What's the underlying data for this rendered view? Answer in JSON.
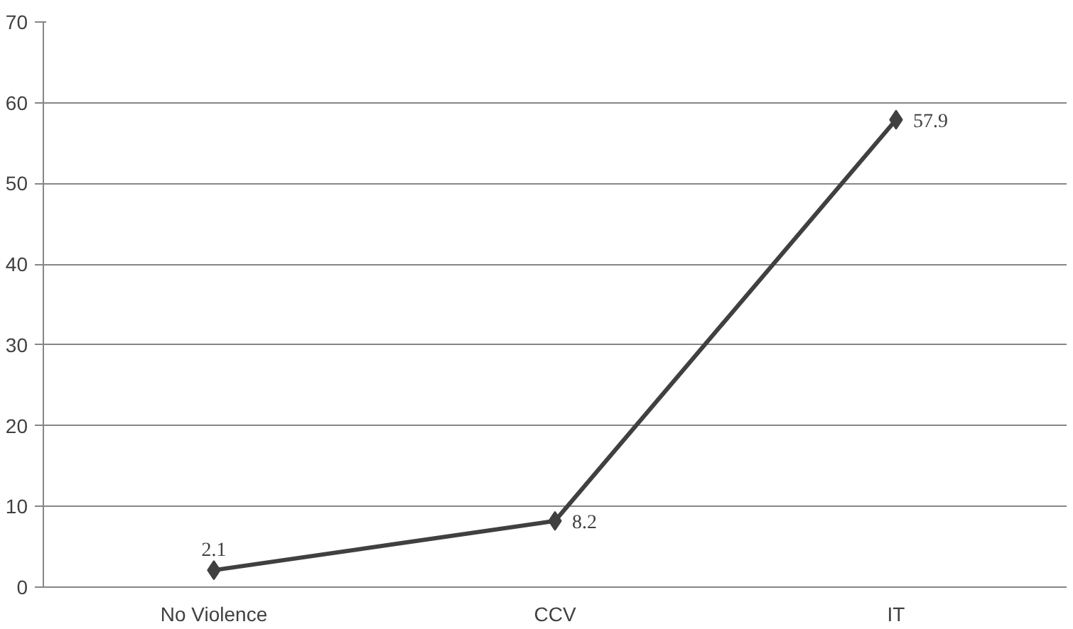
{
  "chart_data": {
    "type": "line",
    "categories": [
      "No Violence",
      "CCV",
      "IT"
    ],
    "series": [
      {
        "color": "#404040",
        "values": [
          2.1,
          8.2,
          57.9
        ]
      }
    ],
    "ylim": [
      0,
      70
    ],
    "yticks": [
      0,
      10,
      20,
      30,
      40,
      50,
      60,
      70
    ],
    "grid": "y",
    "marker": "diamond",
    "line_style": "solid",
    "data_labels": true
  }
}
